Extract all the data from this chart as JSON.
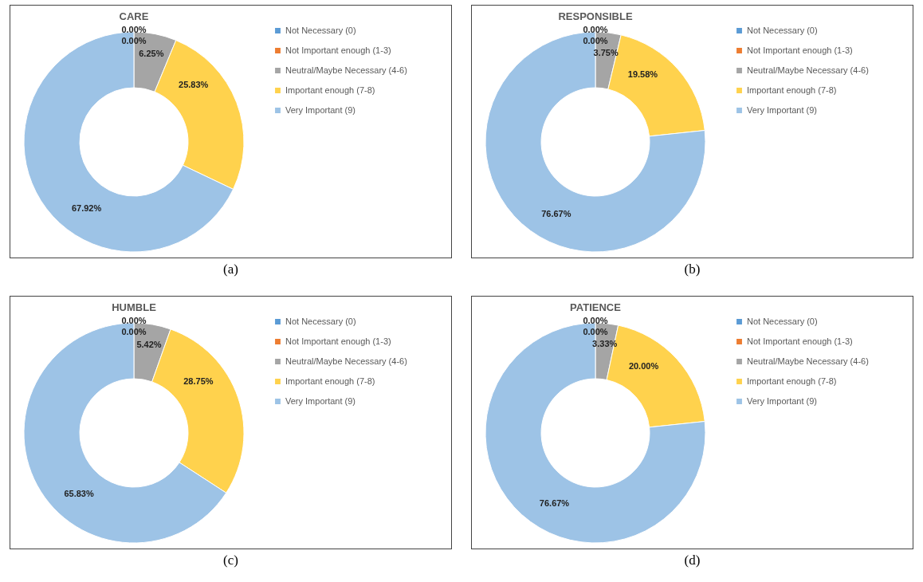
{
  "chart_data": [
    {
      "type": "donut",
      "title": "CARE",
      "categories": [
        "Not Necessary (0)",
        "Not Important enough (1-3)",
        "Neutral/Maybe Necessary (4-6)",
        "Important enough (7-8)",
        "Very Important (9)"
      ],
      "values": [
        0,
        0,
        6.25,
        25.83,
        67.92
      ],
      "colors": [
        "#5b9bd5",
        "#ed7d31",
        "#a5a5a5",
        "#ffd24d",
        "#9dc3e6"
      ],
      "value_labels": [
        "0.00%",
        "0.00%",
        "6.25%",
        "25.83%",
        "67.92%"
      ],
      "legend": "right",
      "annotations": [
        "(a)"
      ]
    },
    {
      "type": "donut",
      "title": "RESPONSIBLE",
      "categories": [
        "Not Necessary (0)",
        "Not Important enough (1-3)",
        "Neutral/Maybe Necessary (4-6)",
        "Important enough (7-8)",
        "Very Important (9)"
      ],
      "values": [
        0,
        0,
        3.75,
        19.58,
        76.67
      ],
      "colors": [
        "#5b9bd5",
        "#ed7d31",
        "#a5a5a5",
        "#ffd24d",
        "#9dc3e6"
      ],
      "value_labels": [
        "0.00%",
        "0.00%",
        "3.75%",
        "19.58%",
        "76.67%"
      ],
      "legend": "right",
      "annotations": [
        "(b)"
      ]
    },
    {
      "type": "donut",
      "title": "HUMBLE",
      "categories": [
        "Not Necessary (0)",
        "Not Important enough (1-3)",
        "Neutral/Maybe Necessary (4-6)",
        "Important enough (7-8)",
        "Very Important (9)"
      ],
      "values": [
        0,
        0,
        5.42,
        28.75,
        65.83
      ],
      "colors": [
        "#5b9bd5",
        "#ed7d31",
        "#a5a5a5",
        "#ffd24d",
        "#9dc3e6"
      ],
      "value_labels": [
        "0.00%",
        "0.00%",
        "5.42%",
        "28.75%",
        "65.83%"
      ],
      "legend": "right",
      "annotations": [
        "(c)"
      ]
    },
    {
      "type": "donut",
      "title": "PATIENCE",
      "categories": [
        "Not Necessary (0)",
        "Not Important enough (1-3)",
        "Neutral/Maybe Necessary (4-6)",
        "Important enough (7-8)",
        "Very Important (9)"
      ],
      "values": [
        0,
        0,
        3.33,
        20.0,
        76.67
      ],
      "colors": [
        "#5b9bd5",
        "#ed7d31",
        "#a5a5a5",
        "#ffd24d",
        "#9dc3e6"
      ],
      "value_labels": [
        "0.00%",
        "0.00%",
        "3.33%",
        "20.00%",
        "76.67%"
      ],
      "legend": "right",
      "annotations": [
        "(d)"
      ]
    }
  ]
}
